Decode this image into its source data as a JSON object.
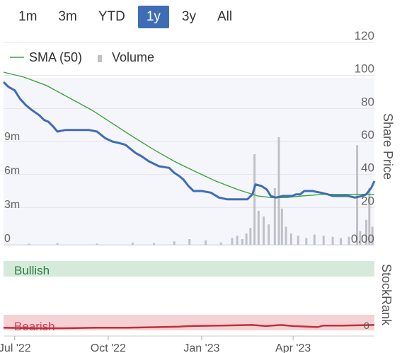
{
  "range_buttons": [
    "1m",
    "3m",
    "YTD",
    "1y",
    "3y",
    "All"
  ],
  "active_range": "1y",
  "colors": {
    "price_line": "#3f6db5",
    "sma_line": "#3aa63a",
    "volume_bar": "#c0c0c8",
    "bullish_band": "#d5eadb",
    "bullish_text": "#2e7d3c",
    "bearish_band": "#f5d1d4",
    "bearish_text": "#d04050",
    "stockrank_line": "#c0303a"
  },
  "chart_data": {
    "type": "line",
    "legend": [
      {
        "name": "SMA (50)",
        "marker": "line"
      },
      {
        "name": "Volume",
        "marker": "bar"
      }
    ],
    "legend_position": "top-left",
    "right_axis": {
      "label": "Share Price",
      "ticks": [
        "0.00",
        "20",
        "40",
        "60",
        "80",
        "100",
        "120"
      ],
      "range": [
        0,
        120
      ]
    },
    "left_axis": {
      "label": "",
      "ticks": [
        "0",
        "3m",
        "6m",
        "9m"
      ],
      "range_millions": [
        0,
        18
      ]
    },
    "x_axis": {
      "ticks": [
        "Jul '22",
        "Oct '22",
        "Jan '23",
        "Apr '23"
      ],
      "range": [
        "2022-06-20",
        "2023-06-20"
      ]
    },
    "price_series": {
      "name": "Share Price",
      "points": [
        [
          "2022-06-20",
          96
        ],
        [
          "2022-06-25",
          93
        ],
        [
          "2022-07-01",
          91
        ],
        [
          "2022-07-06",
          86
        ],
        [
          "2022-07-12",
          82
        ],
        [
          "2022-07-18",
          79
        ],
        [
          "2022-07-25",
          76
        ],
        [
          "2022-07-30",
          73
        ],
        [
          "2022-08-03",
          72
        ],
        [
          "2022-08-08",
          69
        ],
        [
          "2022-08-12",
          66
        ],
        [
          "2022-08-20",
          67
        ],
        [
          "2022-08-31",
          67
        ],
        [
          "2022-09-12",
          67
        ],
        [
          "2022-09-20",
          66
        ],
        [
          "2022-09-28",
          62
        ],
        [
          "2022-10-05",
          60
        ],
        [
          "2022-10-12",
          59
        ],
        [
          "2022-10-18",
          58
        ],
        [
          "2022-10-22",
          56
        ],
        [
          "2022-10-28",
          53
        ],
        [
          "2022-11-03",
          51
        ],
        [
          "2022-11-10",
          48
        ],
        [
          "2022-11-20",
          45
        ],
        [
          "2022-11-30",
          44
        ],
        [
          "2022-12-05",
          41
        ],
        [
          "2022-12-10",
          39
        ],
        [
          "2022-12-14",
          37
        ],
        [
          "2022-12-19",
          33
        ],
        [
          "2022-12-24",
          30
        ],
        [
          "2023-01-01",
          30
        ],
        [
          "2023-01-10",
          29
        ],
        [
          "2023-01-18",
          26
        ],
        [
          "2023-01-26",
          25
        ],
        [
          "2023-02-05",
          25
        ],
        [
          "2023-02-15",
          25
        ],
        [
          "2023-02-20",
          28
        ],
        [
          "2023-02-23",
          34
        ],
        [
          "2023-03-01",
          33
        ],
        [
          "2023-03-06",
          31
        ],
        [
          "2023-03-10",
          27
        ],
        [
          "2023-03-15",
          26
        ],
        [
          "2023-03-22",
          27
        ],
        [
          "2023-03-31",
          27
        ],
        [
          "2023-04-04",
          28
        ],
        [
          "2023-04-08",
          28
        ],
        [
          "2023-04-12",
          30
        ],
        [
          "2023-04-20",
          30
        ],
        [
          "2023-04-28",
          29
        ],
        [
          "2023-05-05",
          28
        ],
        [
          "2023-05-10",
          27
        ],
        [
          "2023-05-18",
          27
        ],
        [
          "2023-05-25",
          27
        ],
        [
          "2023-06-01",
          26
        ],
        [
          "2023-06-08",
          27
        ],
        [
          "2023-06-12",
          28
        ],
        [
          "2023-06-17",
          32
        ],
        [
          "2023-06-20",
          36
        ]
      ]
    },
    "sma_series": {
      "name": "SMA (50)",
      "points": [
        [
          "2022-06-20",
          102
        ],
        [
          "2022-07-10",
          99
        ],
        [
          "2022-08-01",
          94
        ],
        [
          "2022-08-22",
          87
        ],
        [
          "2022-09-15",
          79
        ],
        [
          "2022-10-05",
          71
        ],
        [
          "2022-10-25",
          63
        ],
        [
          "2022-11-15",
          55
        ],
        [
          "2022-12-05",
          48
        ],
        [
          "2022-12-25",
          42
        ],
        [
          "2023-01-15",
          36
        ],
        [
          "2023-02-05",
          31
        ],
        [
          "2023-02-25",
          27
        ],
        [
          "2023-03-10",
          26
        ],
        [
          "2023-03-25",
          26
        ],
        [
          "2023-04-10",
          27
        ],
        [
          "2023-05-01",
          28
        ],
        [
          "2023-05-20",
          28
        ],
        [
          "2023-06-05",
          28
        ],
        [
          "2023-06-20",
          28
        ]
      ]
    },
    "volume_series": {
      "name": "Volume",
      "unit": "shares (millions)",
      "points": [
        [
          "2022-07-15",
          0.1
        ],
        [
          "2022-08-12",
          0.15
        ],
        [
          "2022-09-20",
          0.1
        ],
        [
          "2022-10-25",
          0.2
        ],
        [
          "2022-11-15",
          0.15
        ],
        [
          "2022-12-05",
          0.3
        ],
        [
          "2022-12-20",
          0.5
        ],
        [
          "2023-01-05",
          0.4
        ],
        [
          "2023-01-20",
          0.2
        ],
        [
          "2023-01-31",
          0.6
        ],
        [
          "2023-02-05",
          0.8
        ],
        [
          "2023-02-10",
          0.5
        ],
        [
          "2023-02-14",
          1.0
        ],
        [
          "2023-02-18",
          1.5
        ],
        [
          "2023-02-22",
          8.0
        ],
        [
          "2023-02-26",
          3.0
        ],
        [
          "2023-03-03",
          2.5
        ],
        [
          "2023-03-08",
          1.8
        ],
        [
          "2023-03-14",
          5.0
        ],
        [
          "2023-03-18",
          9.5
        ],
        [
          "2023-03-21",
          3.2
        ],
        [
          "2023-03-25",
          1.6
        ],
        [
          "2023-03-30",
          1.0
        ],
        [
          "2023-04-06",
          0.8
        ],
        [
          "2023-04-14",
          0.6
        ],
        [
          "2023-04-22",
          0.9
        ],
        [
          "2023-05-01",
          0.8
        ],
        [
          "2023-05-10",
          0.7
        ],
        [
          "2023-05-18",
          0.6
        ],
        [
          "2023-05-26",
          0.7
        ],
        [
          "2023-06-03",
          8.8
        ],
        [
          "2023-06-06",
          1.2
        ],
        [
          "2023-06-12",
          2.2
        ],
        [
          "2023-06-15",
          5.0
        ],
        [
          "2023-06-18",
          1.6
        ]
      ]
    },
    "stockrank": {
      "label": "StockRank",
      "bands": [
        "Bullish",
        "Bearish"
      ],
      "right_tick": "0",
      "points": [
        [
          "2022-06-20",
          5
        ],
        [
          "2022-07-20",
          4
        ],
        [
          "2022-08-20",
          4
        ],
        [
          "2022-09-20",
          5
        ],
        [
          "2022-10-20",
          5
        ],
        [
          "2022-11-20",
          6
        ],
        [
          "2022-12-10",
          7
        ],
        [
          "2022-12-20",
          8
        ],
        [
          "2023-01-20",
          9
        ],
        [
          "2023-02-20",
          10
        ],
        [
          "2023-03-05",
          8
        ],
        [
          "2023-03-20",
          10
        ],
        [
          "2023-04-01",
          8
        ],
        [
          "2023-04-25",
          6
        ],
        [
          "2023-05-01",
          9
        ],
        [
          "2023-05-20",
          9
        ],
        [
          "2023-06-20",
          10
        ]
      ]
    }
  }
}
